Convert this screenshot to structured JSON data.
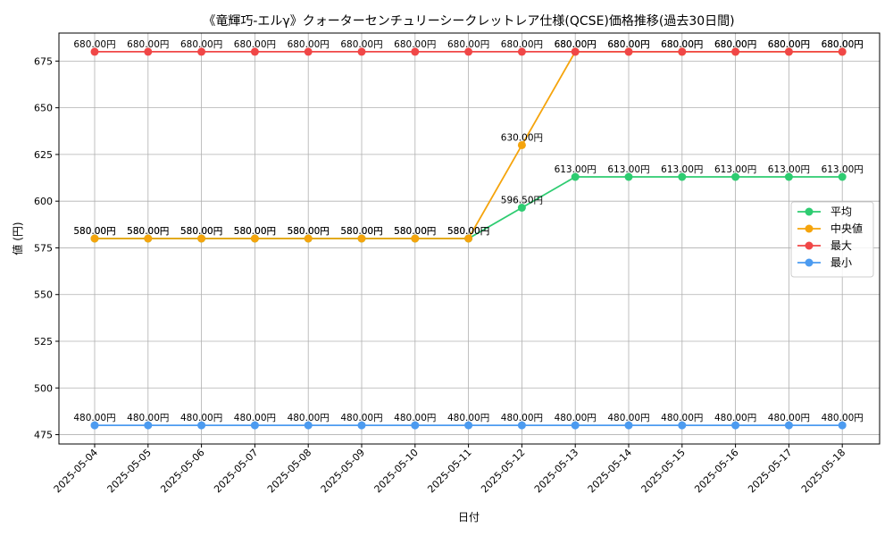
{
  "chart_data": {
    "type": "line",
    "title": "《竜輝巧-エルγ》クォーターセンチュリーシークレットレア仕様(QCSE)価格推移(過去30日間)",
    "xlabel": "日付",
    "ylabel": "値 (円)",
    "ylim": [
      470,
      690
    ],
    "yticks": [
      475,
      500,
      525,
      550,
      575,
      600,
      625,
      650,
      675
    ],
    "grid": true,
    "legend_position": "center-right",
    "categories": [
      "2025-05-04",
      "2025-05-05",
      "2025-05-06",
      "2025-05-07",
      "2025-05-08",
      "2025-05-09",
      "2025-05-10",
      "2025-05-11",
      "2025-05-12",
      "2025-05-13",
      "2025-05-14",
      "2025-05-15",
      "2025-05-16",
      "2025-05-17",
      "2025-05-18"
    ],
    "series": [
      {
        "name": "平均",
        "color": "#2ecc71",
        "values": [
          580,
          580,
          580,
          580,
          580,
          580,
          580,
          580,
          596.5,
          613,
          613,
          613,
          613,
          613,
          613
        ],
        "labels": [
          "580.00円",
          "580.00円",
          "580.00円",
          "580.00円",
          "580.00円",
          "580.00円",
          "580.00円",
          "580.00円",
          "596.50円",
          "613.00円",
          "613.00円",
          "613.00円",
          "613.00円",
          "613.00円",
          "613.00円"
        ]
      },
      {
        "name": "中央値",
        "color": "#f5a40c",
        "values": [
          580,
          580,
          580,
          580,
          580,
          580,
          580,
          580,
          630,
          680,
          680,
          680,
          680,
          680,
          680
        ],
        "labels": [
          "580.00円",
          "580.00円",
          "580.00円",
          "580.00円",
          "580.00円",
          "580.00円",
          "580.00円",
          "580.00円",
          "630.00円",
          "680.00円",
          "680.00円",
          "680.00円",
          "680.00円",
          "680.00円",
          "680.00円"
        ]
      },
      {
        "name": "最大",
        "color": "#f04747",
        "values": [
          680,
          680,
          680,
          680,
          680,
          680,
          680,
          680,
          680,
          680,
          680,
          680,
          680,
          680,
          680
        ],
        "labels": [
          "680.00円",
          "680.00円",
          "680.00円",
          "680.00円",
          "680.00円",
          "680.00円",
          "680.00円",
          "680.00円",
          "680.00円",
          "680.00円",
          "680.00円",
          "680.00円",
          "680.00円",
          "680.00円",
          "680.00円"
        ]
      },
      {
        "name": "最小",
        "color": "#4c9bf0",
        "values": [
          480,
          480,
          480,
          480,
          480,
          480,
          480,
          480,
          480,
          480,
          480,
          480,
          480,
          480,
          480
        ],
        "labels": [
          "480.00円",
          "480.00円",
          "480.00円",
          "480.00円",
          "480.00円",
          "480.00円",
          "480.00円",
          "480.00円",
          "480.00円",
          "480.00円",
          "480.00円",
          "480.00円",
          "480.00円",
          "480.00円",
          "480.00円"
        ]
      }
    ]
  }
}
